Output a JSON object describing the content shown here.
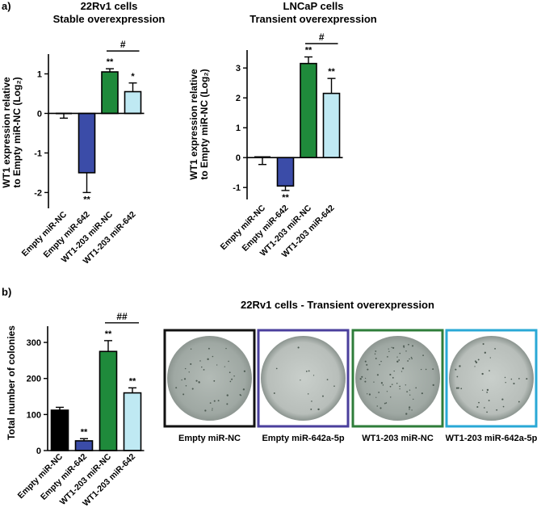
{
  "panel_labels": {
    "a": "a)",
    "b": "b)"
  },
  "colors": {
    "empty_nc": "#ffffff",
    "empty_642": "#3b4ca8",
    "wt1_nc": "#1f8a3b",
    "wt1_642": "#bfe9f3",
    "empty_nc_black": "#000000",
    "frame_black": "#111111",
    "frame_purple": "#4a3f9c",
    "frame_green": "#2e7d3a",
    "frame_cyan": "#29a8d6",
    "dish_fill": "#aab3ae"
  },
  "chart_data": [
    {
      "type": "bar",
      "title": [
        "22Rv1 cells",
        "Stable overexpression"
      ],
      "ylabel": [
        "WT1 expression relative",
        "to Empty miR-NC (Log₂)"
      ],
      "categories": [
        "Empty miR-NC",
        "Empty miR-642",
        "WT1-203 miR-NC",
        "WT1-203 miR-642"
      ],
      "values": [
        0.0,
        -1.5,
        1.05,
        0.55
      ],
      "errors": [
        0.12,
        0.5,
        0.08,
        0.22
      ],
      "error_dir": [
        "down",
        "down",
        "up",
        "up"
      ],
      "sig": [
        "",
        "**",
        "**",
        "*"
      ],
      "sig_pos": [
        "",
        "below",
        "above",
        "above"
      ],
      "bracket": {
        "from": 2,
        "to": 3,
        "label": "#"
      },
      "ylim": [
        -2.4,
        1.5
      ],
      "yticks": [
        -2,
        -1,
        0,
        1
      ],
      "ytick_labels": [
        "-2",
        "-1",
        "0",
        "1"
      ],
      "bar_colors": [
        "#ffffff",
        "#3b4ca8",
        "#1f8a3b",
        "#bfe9f3"
      ]
    },
    {
      "type": "bar",
      "title": [
        "LNCaP cells",
        "Transient overexpression"
      ],
      "ylabel": [
        "WT1 expression relative",
        "to Empty miR-NC (Log₂)"
      ],
      "categories": [
        "Empty miR-NC",
        "Empty miR-642",
        "WT1-203 miR-NC",
        "WT1-203 miR-642"
      ],
      "values": [
        0.02,
        -0.95,
        3.15,
        2.15
      ],
      "errors": [
        0.25,
        0.15,
        0.22,
        0.5
      ],
      "error_dir": [
        "down",
        "down",
        "up",
        "up"
      ],
      "sig": [
        "",
        "**",
        "**",
        "**"
      ],
      "sig_pos": [
        "",
        "below",
        "above",
        "above"
      ],
      "bracket": {
        "from": 2,
        "to": 3,
        "label": "#"
      },
      "ylim": [
        -1.4,
        3.6
      ],
      "yticks": [
        -1,
        0,
        1,
        2,
        3
      ],
      "ytick_labels": [
        "-1",
        "0",
        "1",
        "2",
        "3"
      ],
      "bar_colors": [
        "#ffffff",
        "#3b4ca8",
        "#1f8a3b",
        "#bfe9f3"
      ]
    },
    {
      "type": "bar",
      "title": [],
      "ylabel": [
        "Total number of colonies"
      ],
      "categories": [
        "Empty miR-NC",
        "Empty miR-642",
        "WT1-203 miR-NC",
        "WT1-203 miR-642"
      ],
      "values": [
        112,
        27,
        275,
        160
      ],
      "errors": [
        8,
        6,
        30,
        14
      ],
      "error_dir": [
        "up",
        "up",
        "up",
        "up"
      ],
      "sig": [
        "",
        "**",
        "**",
        "**"
      ],
      "sig_pos": [
        "",
        "above",
        "above",
        "above"
      ],
      "bracket": {
        "from": 2,
        "to": 3,
        "label": "##"
      },
      "ylim": [
        0,
        345
      ],
      "yticks": [
        0,
        100,
        200,
        300
      ],
      "ytick_labels": [
        "0",
        "100",
        "200",
        "300"
      ],
      "bar_colors": [
        "#000000",
        "#3b4ca8",
        "#1f8a3b",
        "#bfe9f3"
      ]
    }
  ],
  "colony_panel": {
    "title": "22Rv1 cells - Transient overexpression",
    "images": [
      {
        "label": "Empty miR-NC",
        "frame": "#111111"
      },
      {
        "label": "Empty miR-642a-5p",
        "frame": "#4a3f9c"
      },
      {
        "label": "WT1-203 miR-NC",
        "frame": "#2e7d3a"
      },
      {
        "label": "WT1-203 miR-642a-5p",
        "frame": "#29a8d6"
      }
    ]
  }
}
